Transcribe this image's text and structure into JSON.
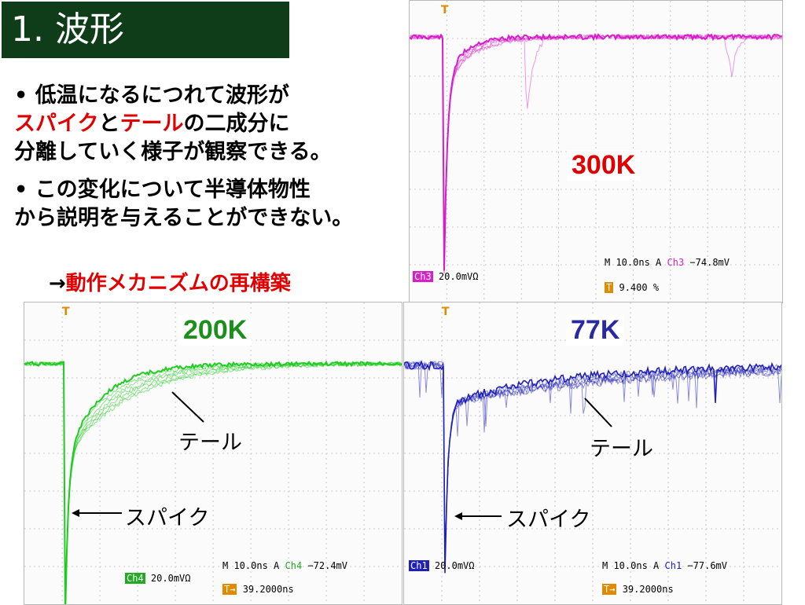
{
  "title": "1. 波形",
  "bullets": [
    {
      "line1": "低温になるにつれて波形が",
      "spike": "スパイク",
      "to": "と",
      "tail": "テール",
      "rest": "の二成分に",
      "line3": "分離していく様子が観察できる。"
    },
    {
      "line1": "この変化について半導体物性",
      "line2": "から説明を与えることができない。"
    }
  ],
  "conclusion": {
    "arrow": "→",
    "text": "動作メカニズムの再構築"
  },
  "scopes": {
    "s300": {
      "temp": "300K",
      "temp_color": "#e00000",
      "trace_color": "#d61fc8",
      "ch_badge": "Ch3",
      "ch_scale": "20.0mVΩ",
      "time": "M 10.0ns",
      "trig": "A",
      "trig_ch": "Ch3",
      "trig_level": "−74.8mV",
      "extra": "9.400 %"
    },
    "s200": {
      "temp": "200K",
      "temp_color": "#1a8f1a",
      "trace_color": "#22cc22",
      "ch_badge": "Ch4",
      "ch_scale": "20.0mVΩ",
      "time": "M 10.0ns",
      "trig": "A",
      "trig_ch": "Ch4",
      "trig_level": "−72.4mV",
      "extra": "39.2000ns",
      "tail_label": "テール",
      "spike_label": "スパイク"
    },
    "s77": {
      "temp": "77K",
      "temp_color": "#2a2aa0",
      "trace_color": "#2020b8",
      "ch_badge": "Ch1",
      "ch_scale": "20.0mVΩ",
      "time": "M 10.0ns",
      "trig": "A",
      "trig_ch": "Ch1",
      "trig_level": "−77.6mV",
      "extra": "39.2000ns",
      "tail_label": "テール",
      "spike_label": "スパイク"
    }
  },
  "colors": {
    "title_bg": "#0f3d1a",
    "highlight": "#e00000"
  }
}
